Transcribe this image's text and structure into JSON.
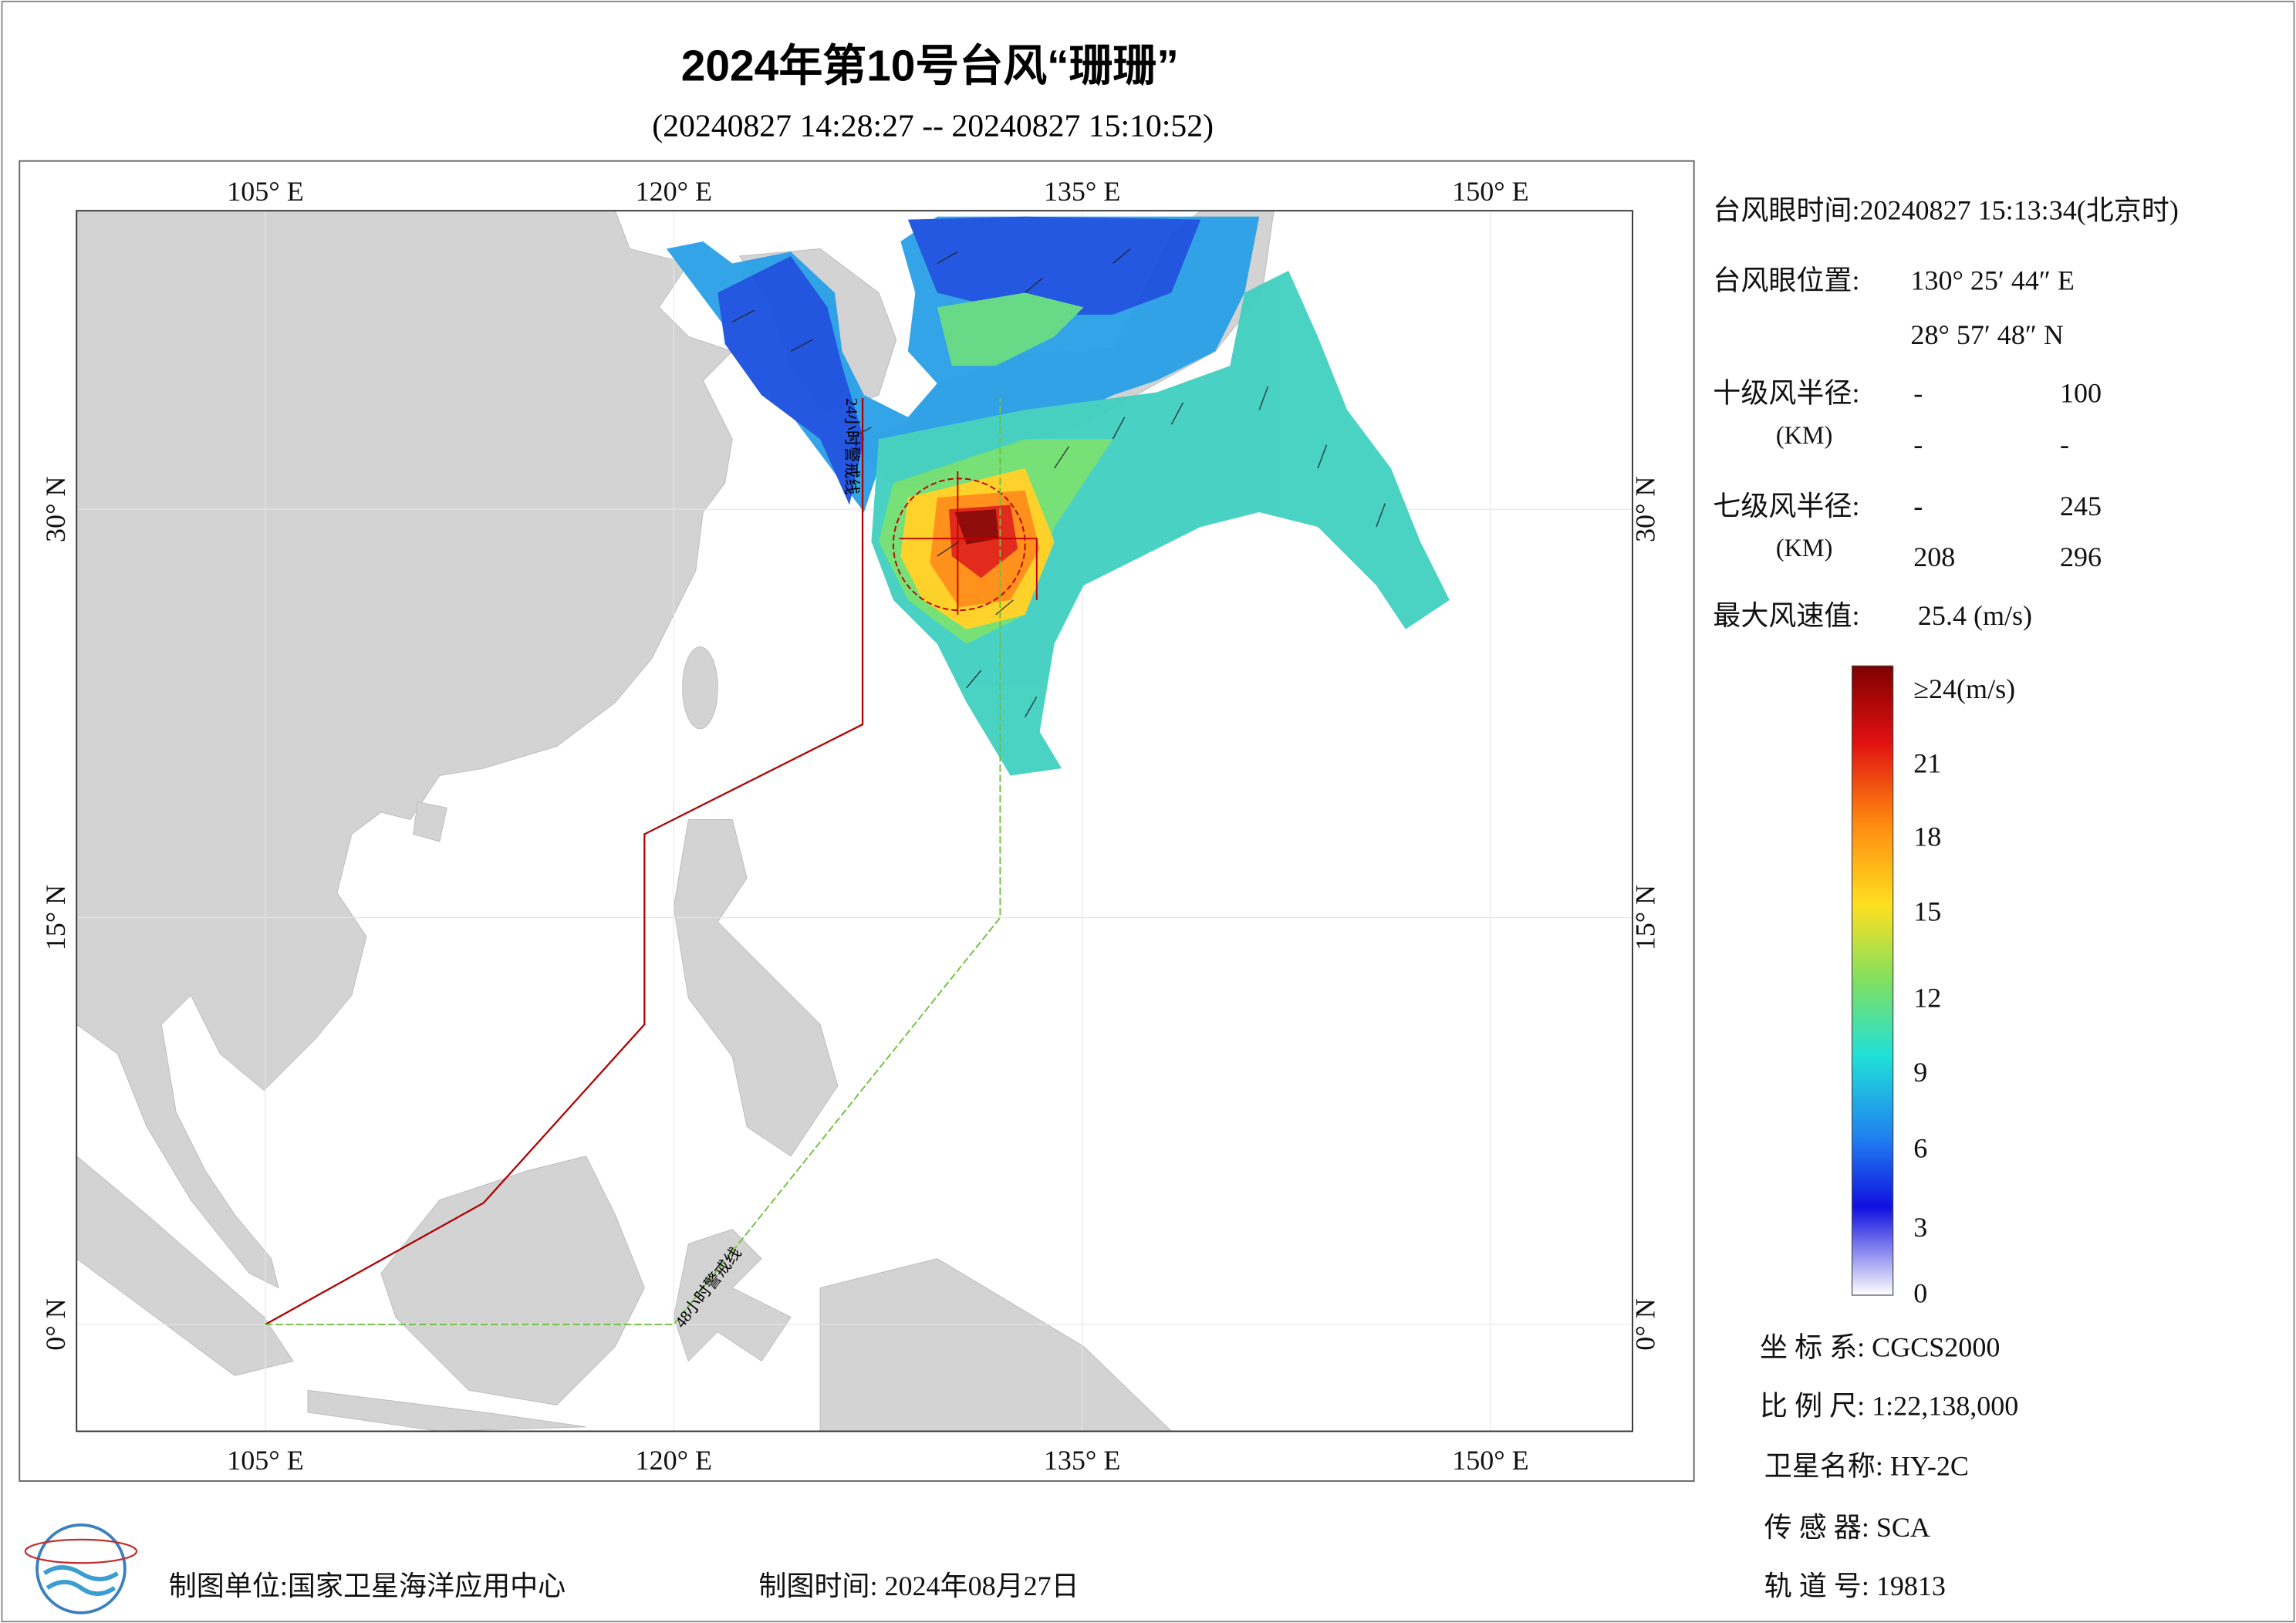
{
  "header": {
    "title": "2024年第10号台风“珊珊”",
    "subtitle": "(20240827 14:28:27 -- 20240827 15:10:52)"
  },
  "map": {
    "lon_labels_top": [
      "105° E",
      "120° E",
      "135° E",
      "150° E"
    ],
    "lon_labels_bottom": [
      "105° E",
      "120° E",
      "135° E",
      "150° E"
    ],
    "lat_labels_left": [
      "30° N",
      "15° N",
      "0° N"
    ],
    "lat_labels_right": [
      "30° N",
      "15° N",
      "0° N"
    ],
    "line_24h": "24小时警戒线",
    "line_48h": "48小时警戒线"
  },
  "info": {
    "eye_time": "台风眼时间:20240827 15:13:34(北京时)",
    "eye_pos_label": "台风眼位置:",
    "eye_lon": "130° 25′ 44″ E",
    "eye_lat": "28° 57′ 48″ N",
    "r10_label": "十级风半径:",
    "r10_row1": [
      "-",
      "100"
    ],
    "r10_unit": "(KM)",
    "r10_row2": [
      "-",
      "-"
    ],
    "r7_label": "七级风半径:",
    "r7_row1": [
      "-",
      "245"
    ],
    "r7_unit": "(KM)",
    "r7_row2": [
      "208",
      "296"
    ],
    "max_label": "最大风速值:",
    "max_value": "25.4  (m/s)"
  },
  "colorbar": {
    "labels": [
      "≥24(m/s)",
      "21",
      "18",
      "15",
      "12",
      "9",
      "6",
      "3",
      "0"
    ]
  },
  "meta": {
    "crs": "坐 标 系:  CGCS2000",
    "scale": "比 例 尺:  1:22,138,000",
    "satellite": "卫星名称:  HY-2C",
    "sensor": "传 感 器:  SCA",
    "orbit": "轨 道 号:  19813"
  },
  "footer": {
    "unit": "制图单位:国家卫星海洋应用中心",
    "time": "制图时间:  2024年08月27日"
  }
}
